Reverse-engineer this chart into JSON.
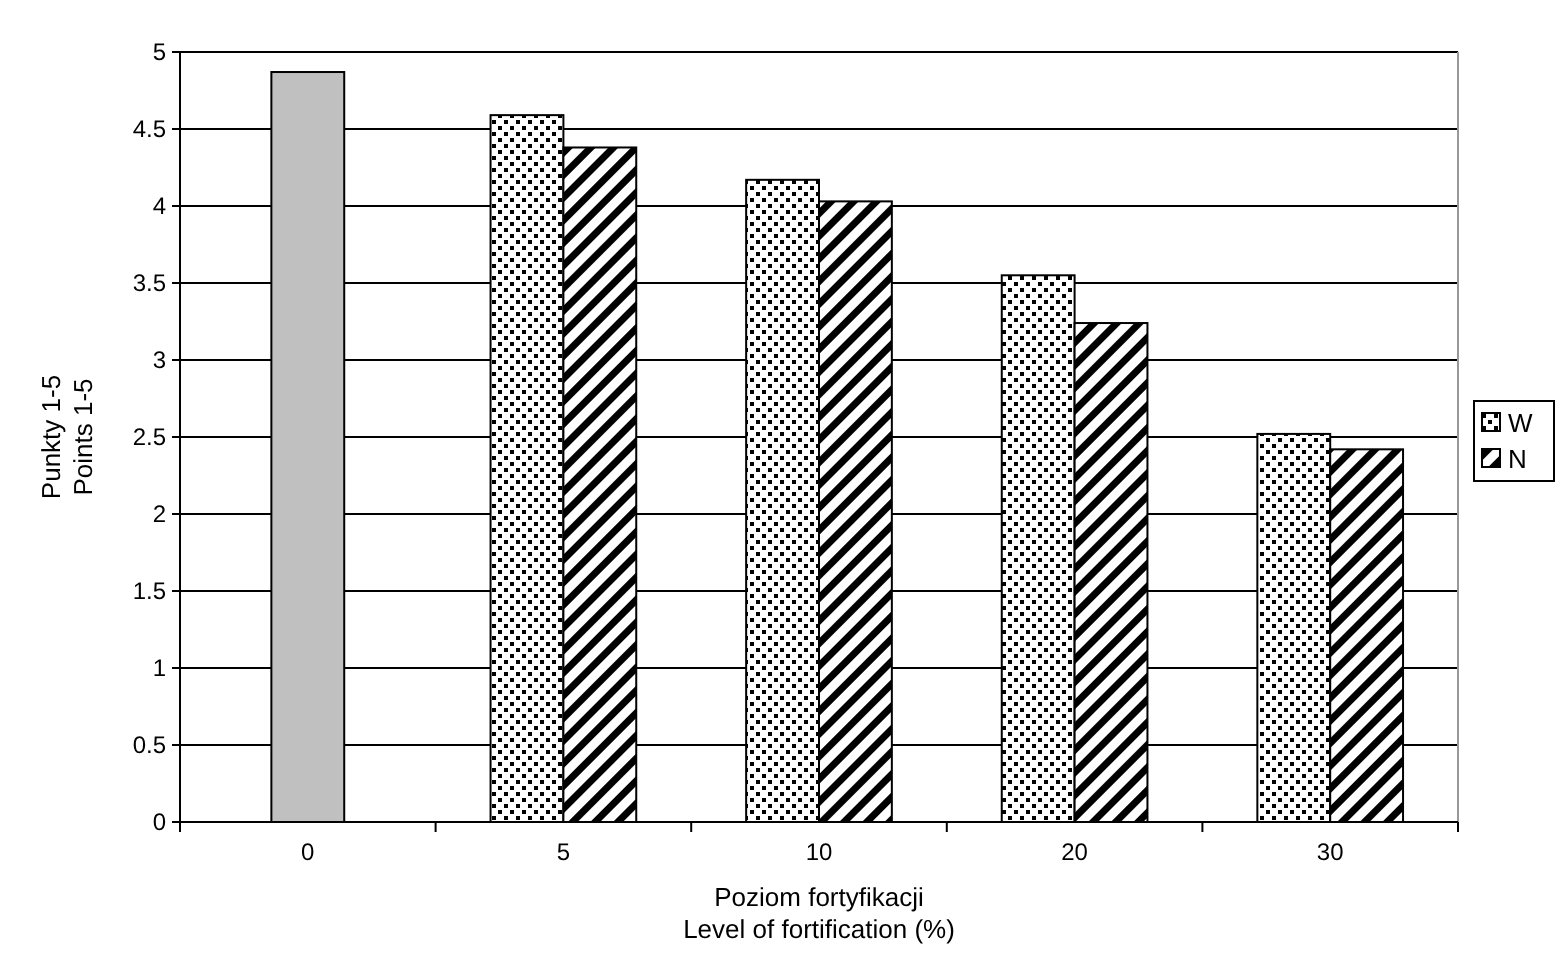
{
  "chart_data": {
    "type": "bar",
    "xlabel": "Poziom fortyfikacji\nLevel of fortification (%)",
    "ylabel": "Punkty 1-5\nPoints 1-5",
    "categories": [
      "0",
      "5",
      "10",
      "20",
      "30"
    ],
    "series": [
      {
        "color": "#c0c0c0",
        "values": [
          4.87,
          null,
          null,
          null,
          null
        ]
      },
      {
        "name": "W",
        "color": "#000000",
        "values": [
          null,
          4.59,
          4.17,
          3.55,
          2.52
        ]
      },
      {
        "name": "N",
        "color": "#000000",
        "values": [
          null,
          4.38,
          4.03,
          3.24,
          2.42
        ]
      }
    ],
    "ylim": [
      0,
      5
    ],
    "yticks": [
      0,
      0.5,
      1,
      1.5,
      2,
      2.5,
      3,
      3.5,
      4,
      4.5,
      5
    ],
    "grid": "y",
    "legend": "right"
  }
}
